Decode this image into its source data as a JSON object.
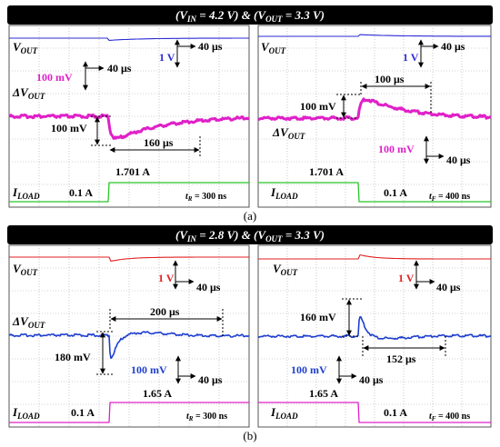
{
  "colors": {
    "ch_vout_a": "#2b2bd6",
    "ch_dv_a": "#e020c8",
    "ch_iload_a": "#28c828",
    "ch_vout_b": "#e22020",
    "ch_dv_b": "#1f3fcf",
    "ch_iload_b": "#e020c8",
    "grid": "#a8a8a8",
    "scope_bg": "#ffffff"
  },
  "figure": {
    "a": {
      "title": "(V_IN = 4.2 V) & (V_OUT = 3.3 V)",
      "title_parts": [
        "(V",
        "IN",
        " = 4.2 V) & (V",
        "OUT",
        " = 3.3 V)"
      ],
      "caption": "(a)",
      "left": {
        "vout_label": "V",
        "vout_sub": "OUT",
        "dv_label": "ΔV",
        "dv_sub": "OUT",
        "iload_label": "I",
        "iload_sub": "LOAD",
        "scale_v": "1 V",
        "scale_t1": "40 μs",
        "scale_dv": "100 mV",
        "scale_t2": "40 μs",
        "drop": "100 mV",
        "recovery": "160 μs",
        "i_high": "1.701 A",
        "i_low": "0.1 A",
        "edge_label": "t",
        "edge_sub": "R",
        "edge_value": " = 300 ns"
      },
      "right": {
        "vout_label": "V",
        "vout_sub": "OUT",
        "dv_label": "ΔV",
        "dv_sub": "OUT",
        "iload_label": "I",
        "iload_sub": "LOAD",
        "scale_v": "1 V",
        "scale_t1": "40 μs",
        "scale_dv": "100 mV",
        "scale_t2": "40 μs",
        "overshoot": "100 mV",
        "recovery": "100 μs",
        "i_high": "1.701 A",
        "i_low": "0.1 A",
        "edge_label": "t",
        "edge_sub": "F",
        "edge_value": " = 400 ns"
      }
    },
    "b": {
      "title": "(V_IN = 2.8 V) & (V_OUT = 3.3 V)",
      "title_parts": [
        "(V",
        "IN",
        " = 2.8 V) & (V",
        "OUT",
        " = 3.3 V)"
      ],
      "caption": "(b)",
      "left": {
        "vout_label": "V",
        "vout_sub": "OUT",
        "dv_label": "ΔV",
        "dv_sub": "OUT",
        "iload_label": "I",
        "iload_sub": "LOAD",
        "scale_v": "1 V",
        "scale_t1": "40 μs",
        "scale_dv": "100 mV",
        "scale_t2": "40 μs",
        "drop": "180 mV",
        "recovery": "200 μs",
        "i_high": "1.65 A",
        "i_low": "0.1 A",
        "edge_label": "t",
        "edge_sub": "R",
        "edge_value": " = 300 ns"
      },
      "right": {
        "vout_label": "V",
        "vout_sub": "OUT",
        "iload_label": "I",
        "iload_sub": "LOAD",
        "scale_v": "1 V",
        "scale_t1": "40 μs",
        "scale_dv": "100 mV",
        "scale_t2": "40 μs",
        "overshoot": "160 mV",
        "recovery": "152 μs",
        "i_high": "1.65 A",
        "i_low": "0.1 A",
        "edge_label": "t",
        "edge_sub": "F",
        "edge_value": " = 400 ns"
      }
    }
  },
  "chart_data": [
    {
      "type": "line",
      "panel": "a-left",
      "transient": "load step-up",
      "x_unit": "μs",
      "series": [
        {
          "name": "V_OUT",
          "scale": "1 V/div",
          "dip": "slight"
        },
        {
          "name": "ΔV_OUT",
          "scale": "100 mV/div",
          "undershoot_mV": 100,
          "recovery_us": 160
        },
        {
          "name": "I_LOAD",
          "step_from_A": 0.1,
          "step_to_A": 1.701,
          "rise_time_ns": 300
        }
      ]
    },
    {
      "type": "line",
      "panel": "a-right",
      "transient": "load step-down",
      "x_unit": "μs",
      "series": [
        {
          "name": "V_OUT",
          "scale": "1 V/div"
        },
        {
          "name": "ΔV_OUT",
          "scale": "100 mV/div",
          "overshoot_mV": 100,
          "recovery_us": 100
        },
        {
          "name": "I_LOAD",
          "step_from_A": 1.701,
          "step_to_A": 0.1,
          "fall_time_ns": 400
        }
      ]
    },
    {
      "type": "line",
      "panel": "b-left",
      "transient": "load step-up",
      "x_unit": "μs",
      "series": [
        {
          "name": "V_OUT",
          "scale": "1 V/div",
          "dip": "slight"
        },
        {
          "name": "ΔV_OUT",
          "scale": "100 mV/div",
          "undershoot_mV": 180,
          "recovery_us": 200
        },
        {
          "name": "I_LOAD",
          "step_from_A": 0.1,
          "step_to_A": 1.65,
          "rise_time_ns": 300
        }
      ]
    },
    {
      "type": "line",
      "panel": "b-right",
      "transient": "load step-down",
      "x_unit": "μs",
      "series": [
        {
          "name": "V_OUT",
          "scale": "1 V/div"
        },
        {
          "name": "ΔV_OUT",
          "scale": "100 mV/div",
          "overshoot_mV": 160,
          "recovery_us": 152
        },
        {
          "name": "I_LOAD",
          "step_from_A": 1.65,
          "step_to_A": 0.1,
          "fall_time_ns": 400
        }
      ]
    }
  ]
}
